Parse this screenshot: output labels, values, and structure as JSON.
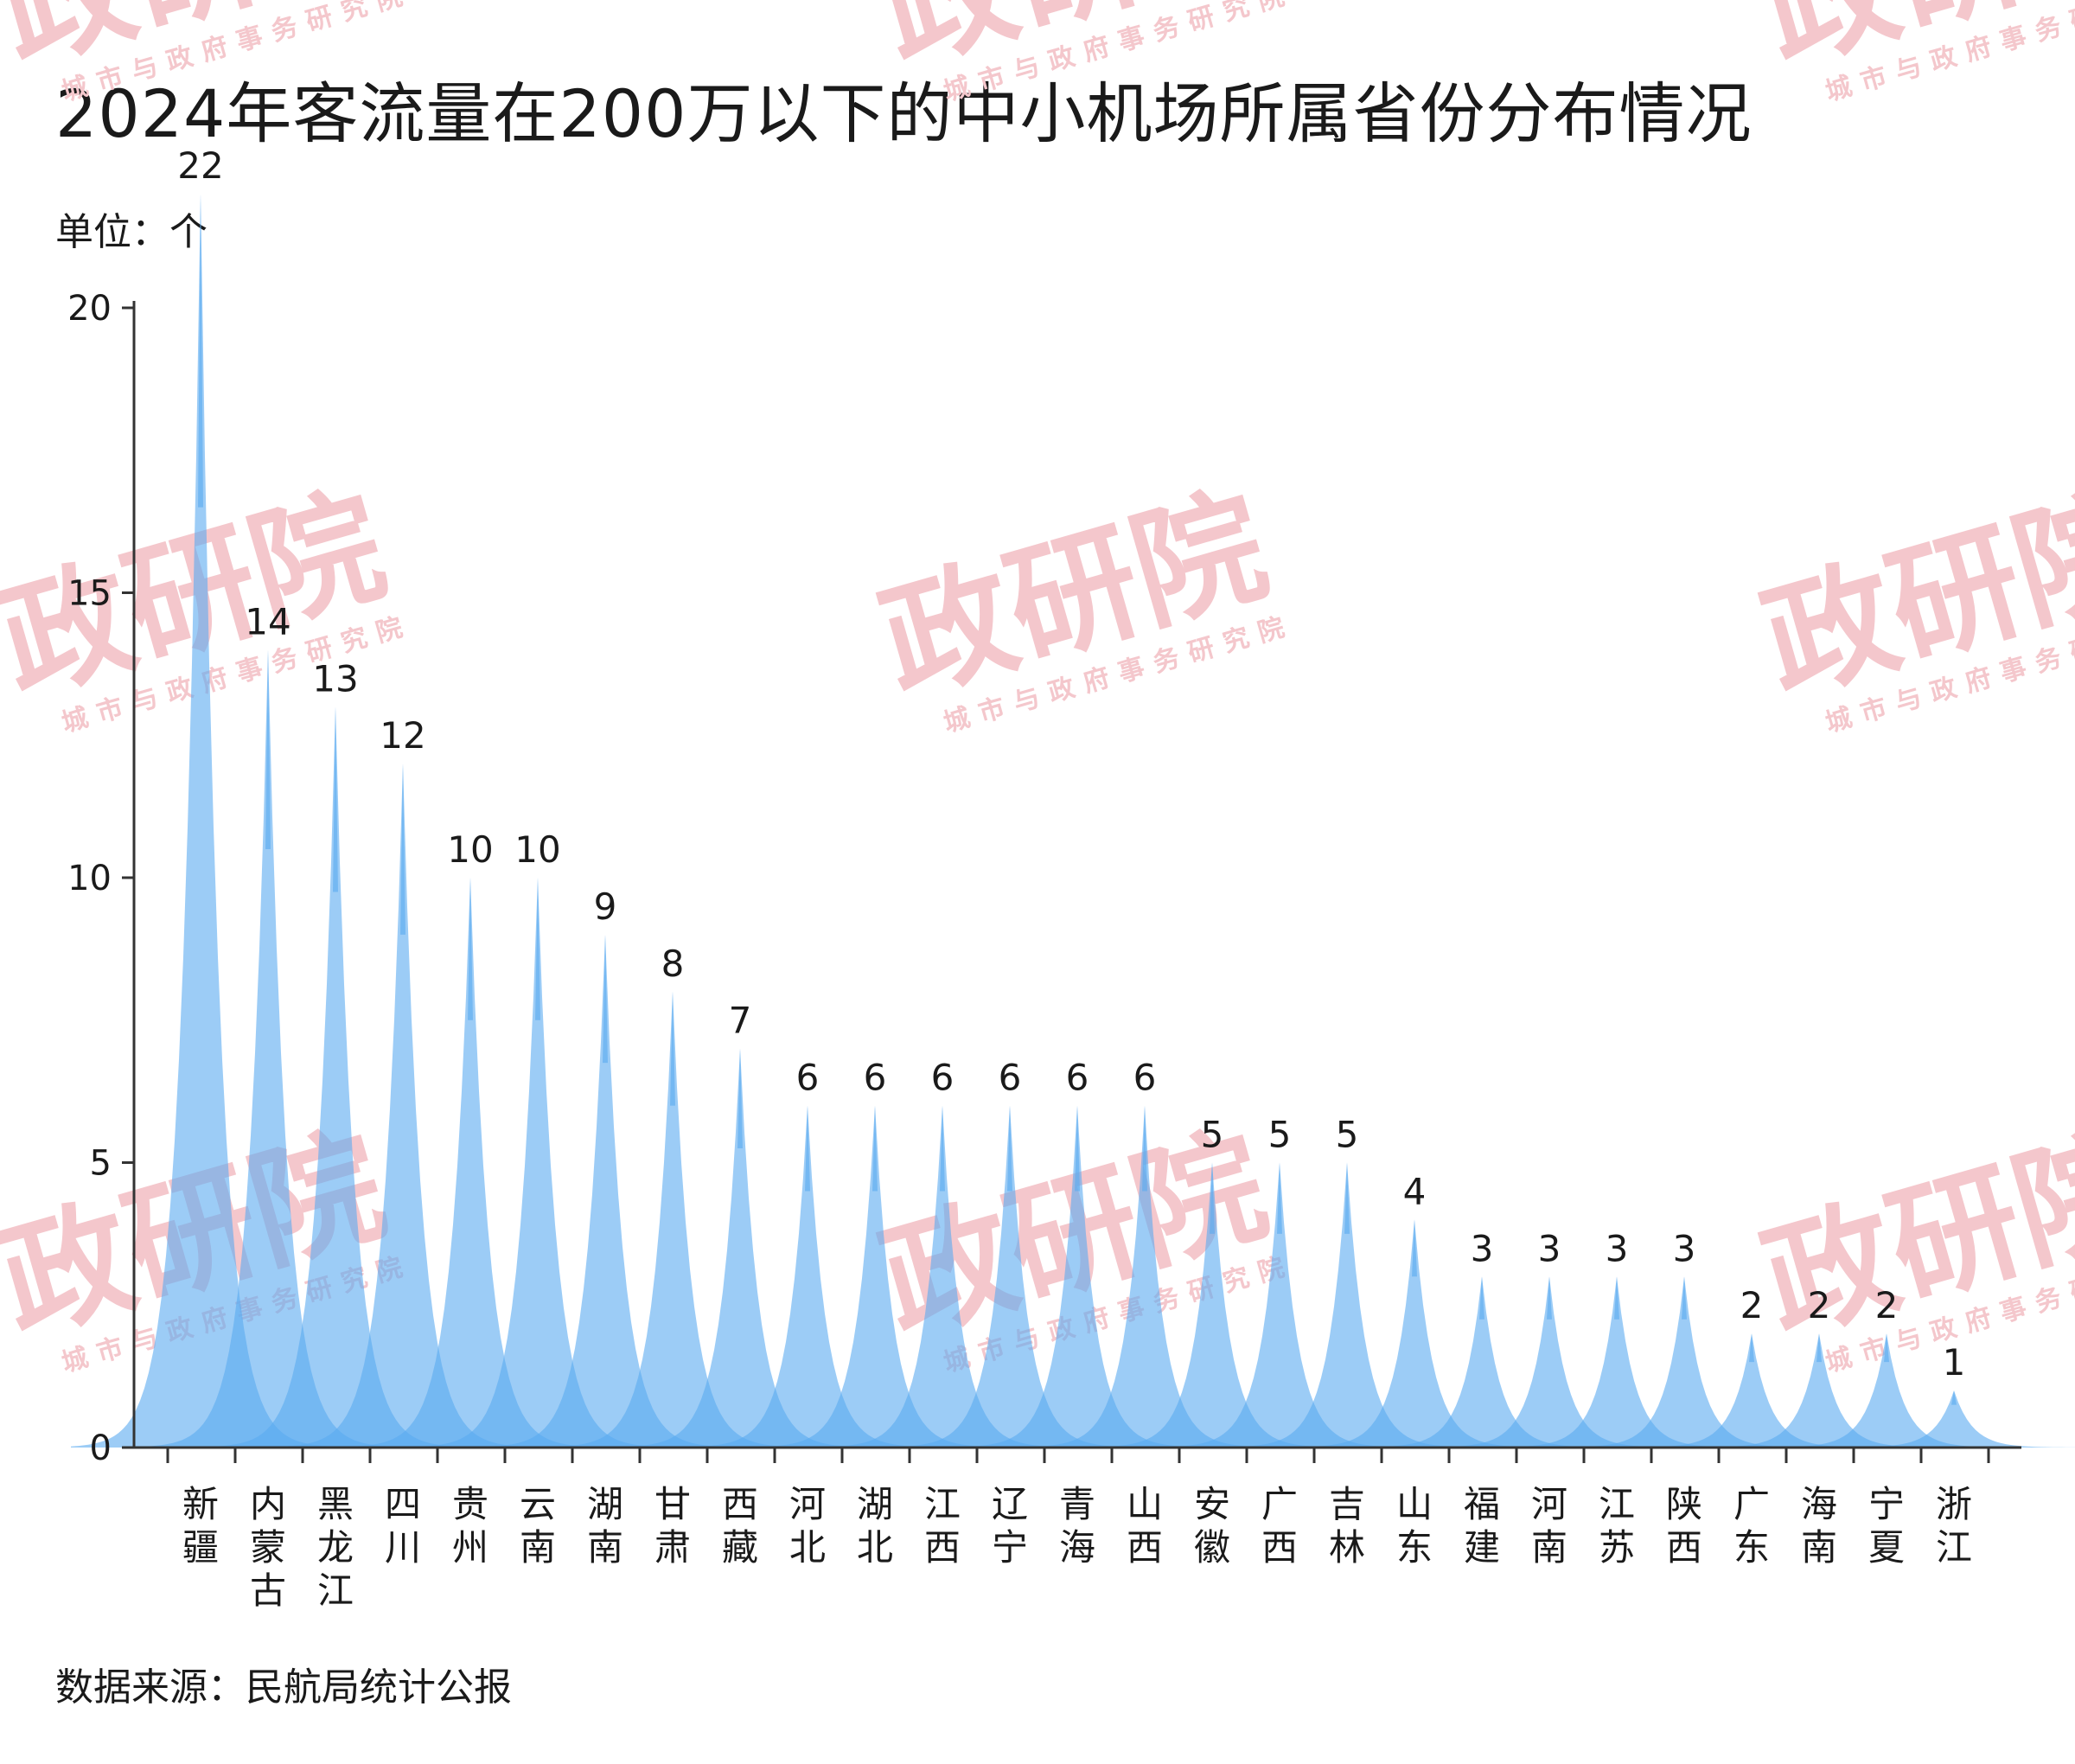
{
  "title": "2024年客流量在200万以下的中小机场所属省份分布情况",
  "unit": "单位：个",
  "source": "数据来源：民航局统计公报",
  "watermark": {
    "brand": "政研院",
    "tagline": "城市与政府事务研究院"
  },
  "colors": {
    "fill": "#5aaaf0",
    "axis": "#333333",
    "watermark": "#f4c7cc"
  },
  "chart_data": {
    "type": "area",
    "categories": [
      "新疆",
      "内蒙古",
      "黑龙江",
      "四川",
      "贵州",
      "云南",
      "湖南",
      "甘肃",
      "西藏",
      "河北",
      "湖北",
      "江西",
      "辽宁",
      "青海",
      "山西",
      "安徽",
      "广西",
      "吉林",
      "山东",
      "福建",
      "河南",
      "江苏",
      "陕西",
      "广东",
      "海南",
      "宁夏",
      "浙江"
    ],
    "values": [
      22,
      14,
      13,
      12,
      10,
      10,
      9,
      8,
      7,
      6,
      6,
      6,
      6,
      6,
      6,
      5,
      5,
      5,
      4,
      3,
      3,
      3,
      3,
      2,
      2,
      2,
      1
    ],
    "yticks": [
      0,
      5,
      10,
      15,
      20
    ],
    "ylim": [
      0,
      23
    ],
    "grid": false,
    "legend": "none"
  }
}
